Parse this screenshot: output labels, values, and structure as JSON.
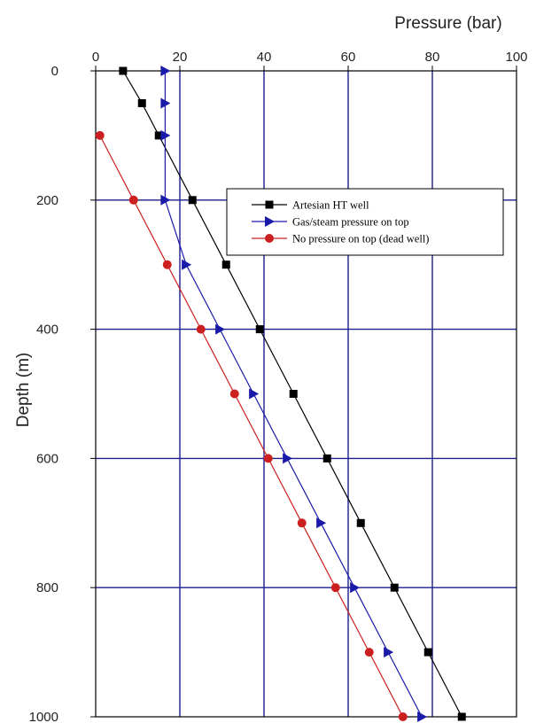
{
  "chart_data": {
    "type": "line",
    "xlabel": "Pressure (bar)",
    "ylabel": "Depth (m)",
    "xlim": [
      0,
      100
    ],
    "ylim": [
      0,
      1000
    ],
    "y_inverted": true,
    "x_axis_position": "top",
    "x_ticks": [
      0,
      20,
      40,
      60,
      80,
      100
    ],
    "y_ticks": [
      0,
      200,
      400,
      600,
      800,
      1000
    ],
    "grid": true,
    "legend_position": "top-right",
    "series": [
      {
        "name": "Artesian HT well",
        "color": "#000000",
        "marker": "square",
        "points": [
          [
            6.5,
            0
          ],
          [
            11,
            50
          ],
          [
            15,
            100
          ],
          [
            23,
            200
          ],
          [
            31,
            300
          ],
          [
            39,
            400
          ],
          [
            47,
            500
          ],
          [
            55,
            600
          ],
          [
            63,
            700
          ],
          [
            71,
            800
          ],
          [
            79,
            900
          ],
          [
            87,
            1000
          ]
        ]
      },
      {
        "name": "Gas/steam pressure on top",
        "color": "#1a1aa8",
        "marker": "triangle-right",
        "points": [
          [
            16.5,
            0
          ],
          [
            16.5,
            50
          ],
          [
            16.5,
            100
          ],
          [
            16.5,
            200
          ],
          [
            21.5,
            300
          ],
          [
            29.5,
            400
          ],
          [
            37.5,
            500
          ],
          [
            45.5,
            600
          ],
          [
            53.5,
            700
          ],
          [
            61.5,
            800
          ],
          [
            69.5,
            900
          ],
          [
            77.5,
            1000
          ]
        ]
      },
      {
        "name": "No pressure on top (dead well)",
        "color": "#cc2020",
        "marker": "circle",
        "points": [
          [
            1,
            100
          ],
          [
            9,
            200
          ],
          [
            17,
            300
          ],
          [
            25,
            400
          ],
          [
            33,
            500
          ],
          [
            41,
            600
          ],
          [
            49,
            700
          ],
          [
            57,
            800
          ],
          [
            65,
            900
          ],
          [
            73,
            1000
          ]
        ]
      }
    ]
  }
}
